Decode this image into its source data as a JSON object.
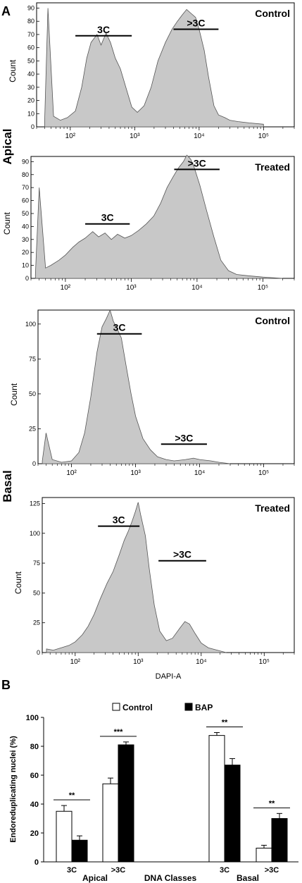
{
  "figure": {
    "panel_a_label": "A",
    "panel_b_label": "B",
    "apical_label": "Apical",
    "basal_label": "Basal"
  },
  "chart_data": [
    {
      "type": "area",
      "group": "Apical",
      "title": "Control",
      "ylabel": "Count",
      "xscale": "log",
      "xlim": [
        30,
        300000
      ],
      "ylim": [
        0,
        94
      ],
      "yticks": [
        0,
        10,
        20,
        30,
        40,
        50,
        60,
        70,
        80,
        90
      ],
      "xticks": [
        "10²",
        "10³",
        "10⁴",
        "10⁵"
      ],
      "gates": [
        {
          "label": "3C",
          "x": [
            120,
            900
          ],
          "y": 69
        },
        {
          "label": ">3C",
          "x": [
            4000,
            20000
          ],
          "y": 74
        }
      ],
      "x": [
        40,
        45,
        55,
        70,
        90,
        120,
        150,
        180,
        210,
        260,
        300,
        360,
        420,
        500,
        600,
        750,
        900,
        1100,
        1400,
        1800,
        2300,
        3000,
        3800,
        4600,
        5500,
        6400,
        7500,
        8800,
        10000,
        12000,
        14000,
        17000,
        20000,
        25000,
        30000,
        40000,
        60000,
        100000
      ],
      "y": [
        4,
        90,
        8,
        5,
        7,
        12,
        30,
        52,
        64,
        70,
        62,
        71,
        64,
        52,
        44,
        28,
        15,
        11,
        16,
        30,
        50,
        64,
        74,
        80,
        85,
        89,
        86,
        83,
        74,
        58,
        38,
        16,
        9,
        7,
        5,
        4,
        3,
        2
      ]
    },
    {
      "type": "area",
      "group": "Apical",
      "title": "Treated",
      "ylabel": "Count",
      "xscale": "log",
      "xlim": [
        30,
        300000
      ],
      "ylim": [
        0,
        94
      ],
      "yticks": [
        0,
        10,
        20,
        30,
        40,
        50,
        60,
        70,
        80,
        90
      ],
      "xticks": [
        "10²",
        "10³",
        "10⁴",
        "10⁵"
      ],
      "gates": [
        {
          "label": "3C",
          "x": [
            200,
            950
          ],
          "y": 42
        },
        {
          "label": ">3C",
          "x": [
            4500,
            22000
          ],
          "y": 84
        }
      ],
      "x": [
        35,
        40,
        50,
        60,
        80,
        100,
        130,
        160,
        200,
        260,
        320,
        400,
        500,
        620,
        800,
        1000,
        1300,
        1700,
        2200,
        2800,
        3500,
        4300,
        5200,
        6200,
        7000,
        8000,
        9000,
        11000,
        14000,
        18000,
        23000,
        30000,
        40000,
        60000,
        100000,
        200000
      ],
      "y": [
        3,
        70,
        8,
        10,
        14,
        18,
        24,
        28,
        31,
        36,
        32,
        35,
        30,
        34,
        31,
        33,
        37,
        42,
        48,
        58,
        70,
        78,
        85,
        90,
        95,
        92,
        86,
        72,
        52,
        32,
        14,
        6,
        3,
        2,
        1,
        0
      ]
    },
    {
      "type": "area",
      "group": "Basal",
      "title": "Control",
      "ylabel": "Count",
      "xscale": "log",
      "xlim": [
        30,
        300000
      ],
      "ylim": [
        0,
        110
      ],
      "yticks": [
        0,
        25,
        50,
        75,
        100
      ],
      "xticks": [
        "10²",
        "10³",
        "10⁴",
        "10⁵"
      ],
      "gates": [
        {
          "label": "3C",
          "x": [
            250,
            1250
          ],
          "y": 93
        },
        {
          "label": ">3C",
          "x": [
            2500,
            13000
          ],
          "y": 14
        }
      ],
      "x": [
        35,
        40,
        50,
        70,
        100,
        130,
        160,
        200,
        250,
        300,
        350,
        400,
        450,
        500,
        600,
        700,
        850,
        1000,
        1300,
        1700,
        2200,
        3000,
        4000,
        6000,
        8000,
        10000,
        15000,
        20000,
        30000
      ],
      "y": [
        2,
        22,
        3,
        1,
        2,
        8,
        22,
        48,
        80,
        98,
        104,
        110,
        102,
        98,
        90,
        72,
        50,
        34,
        18,
        10,
        5,
        3,
        2,
        3,
        4,
        3,
        2,
        1,
        0
      ]
    },
    {
      "type": "area",
      "group": "Basal",
      "title": "Treated",
      "ylabel": "Count",
      "xscale": "log",
      "xlim": [
        30,
        300000
      ],
      "ylim": [
        0,
        130
      ],
      "yticks": [
        0,
        25,
        50,
        75,
        100,
        125
      ],
      "xticks": [
        "10²",
        "10³",
        "10⁴",
        "10⁵"
      ],
      "xlabel": "DAPI-A",
      "gates": [
        {
          "label": "3C",
          "x": [
            230,
            1050
          ],
          "y": 106
        },
        {
          "label": ">3C",
          "x": [
            2100,
            12000
          ],
          "y": 77
        }
      ],
      "x": [
        35,
        45,
        60,
        80,
        100,
        130,
        160,
        200,
        250,
        320,
        400,
        500,
        600,
        700,
        800,
        900,
        1000,
        1100,
        1300,
        1500,
        1800,
        2200,
        2800,
        3500,
        4500,
        5500,
        6500,
        8000,
        10000,
        13000,
        18000,
        25000
      ],
      "y": [
        3,
        2,
        4,
        6,
        9,
        15,
        22,
        32,
        45,
        58,
        68,
        82,
        94,
        102,
        110,
        118,
        126,
        115,
        98,
        70,
        40,
        18,
        10,
        12,
        20,
        26,
        24,
        16,
        8,
        4,
        2,
        0
      ]
    },
    {
      "type": "bar",
      "ylabel": "Endoreduplicating nuclei (%)",
      "xlabel": "DNA Classes",
      "ylim": [
        0,
        100
      ],
      "yticks": [
        0,
        20,
        40,
        60,
        80,
        100
      ],
      "groups": [
        "Apical",
        "Basal"
      ],
      "categories": [
        "3C",
        ">3C",
        "3C",
        ">3C"
      ],
      "series": [
        {
          "name": "Control",
          "values": [
            35,
            54,
            87.5,
            9.5
          ],
          "errors": [
            4,
            4,
            2,
            2
          ],
          "color": "#ffffff"
        },
        {
          "name": "BAP",
          "values": [
            15,
            81,
            67,
            30
          ],
          "errors": [
            3,
            2,
            4.5,
            3.5
          ],
          "color": "#000000"
        }
      ],
      "significance": [
        "**",
        "***",
        "**",
        "**"
      ]
    }
  ]
}
